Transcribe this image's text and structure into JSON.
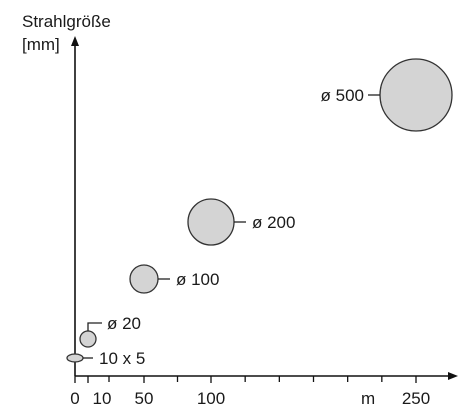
{
  "chart_data": {
    "type": "scatter",
    "title": "",
    "ylabel_line1": "Strahlgröße",
    "ylabel_line2": "[mm]",
    "xlabel": "m",
    "x_tick_labels": [
      "0",
      "10",
      "50",
      "100",
      "250"
    ],
    "x_ticks_values": [
      0,
      10,
      50,
      100,
      250
    ],
    "xlim": [
      0,
      260
    ],
    "grid": false,
    "point_color": "#d4d4d4",
    "points": [
      {
        "label": "10 x 5",
        "x": 0,
        "diameter_mm": 10,
        "height_mm": 5
      },
      {
        "label": "ø 20",
        "x": 10,
        "diameter_mm": 20
      },
      {
        "label": "ø 100",
        "x": 50,
        "diameter_mm": 100
      },
      {
        "label": "ø 200",
        "x": 100,
        "diameter_mm": 200
      },
      {
        "label": "ø 500",
        "x": 250,
        "diameter_mm": 500
      }
    ]
  }
}
